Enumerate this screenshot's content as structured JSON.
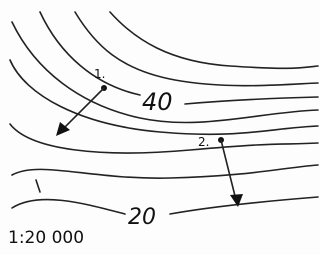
{
  "labels": {
    "point_1": "1.",
    "point_2": "2.",
    "contour_upper": 40,
    "contour_lower": 20,
    "scale": "1:20 000"
  }
}
